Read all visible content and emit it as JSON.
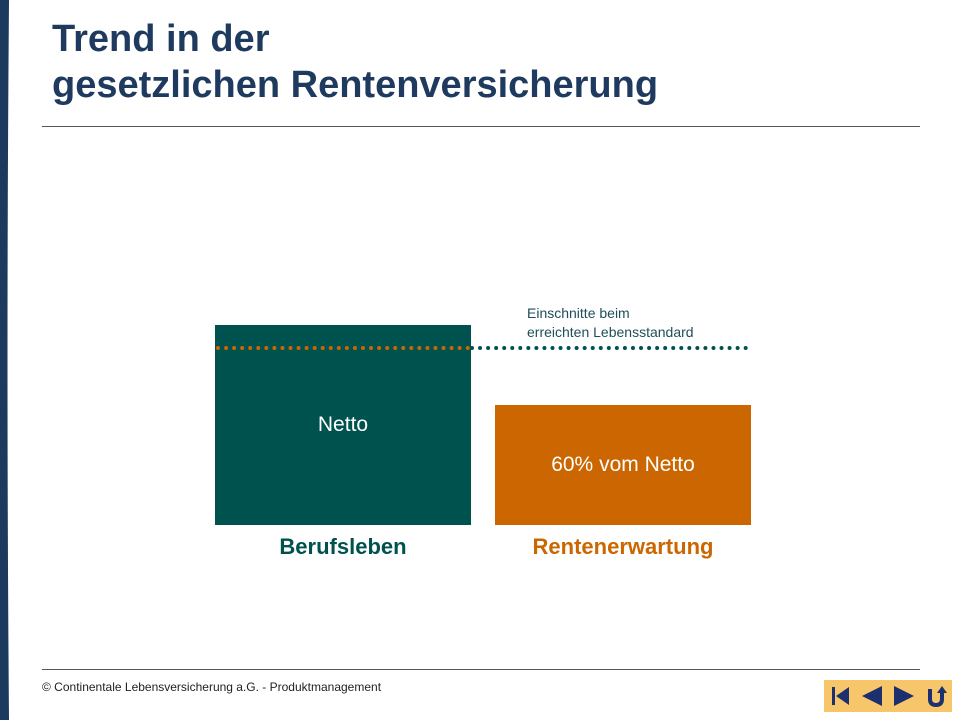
{
  "title": {
    "line1": "Trend in der",
    "line2": "gesetzlichen Rentenversicherung"
  },
  "colors": {
    "title": "#1f3a5f",
    "left_bar": "#1c3a5e",
    "teal": "#00524f",
    "orange": "#cc6600",
    "nav_bg": "#f7c66b",
    "nav_icon": "#1c2f6e"
  },
  "diagram": {
    "annotation_line1": "Einschnitte beim",
    "annotation_line2": "erreichten Lebensstandard",
    "bar_netto": "Netto",
    "bar_rente": "60% vom Netto",
    "label_berufsleben": "Berufsleben",
    "label_rente": "Rentenerwartung"
  },
  "footer": {
    "copyright": "©  Continentale Lebensversicherung a.G. - Produktmanagement"
  },
  "nav": {
    "icons": [
      "first-slide-icon",
      "previous-slide-icon",
      "next-slide-icon",
      "return-icon"
    ]
  }
}
